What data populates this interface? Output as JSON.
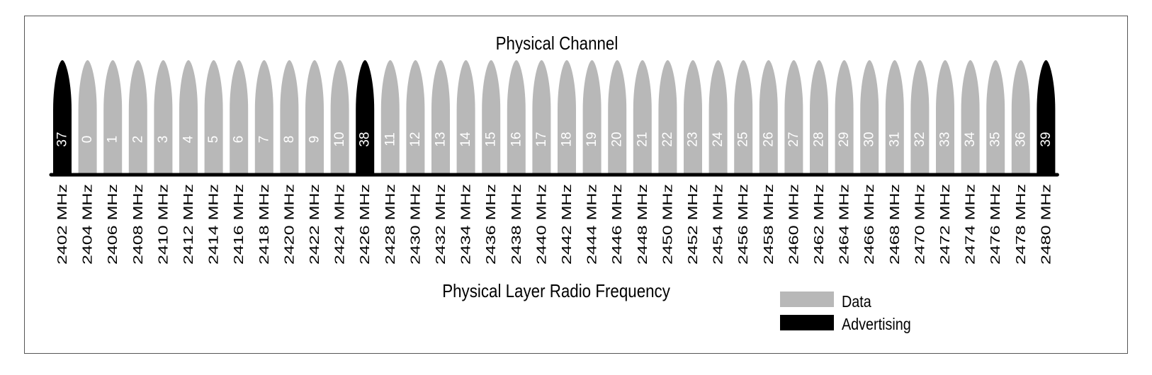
{
  "title": "Physical Channel",
  "xlabel": "Physical Layer Radio Frequency",
  "colors": {
    "data": "#b8b8b8",
    "advertising": "#000000",
    "baseline": "#000000",
    "label_on_channel": "#ffffff",
    "text": "#000000"
  },
  "legend": [
    {
      "key": "data",
      "label": "Data",
      "color": "#b8b8b8"
    },
    {
      "key": "advertising",
      "label": "Advertising",
      "color": "#000000"
    }
  ],
  "chart_data": {
    "type": "bar",
    "title": "Physical Channel",
    "xlabel": "Physical Layer Radio Frequency",
    "categories": [
      "2402 MHz",
      "2404 MHz",
      "2406 MHz",
      "2408 MHz",
      "2410 MHz",
      "2412 MHz",
      "2414 MHz",
      "2416 MHz",
      "2418 MHz",
      "2420 MHz",
      "2422 MHz",
      "2424 MHz",
      "2426 MHz",
      "2428 MHz",
      "2430 MHz",
      "2432 MHz",
      "2434 MHz",
      "2436 MHz",
      "2438 MHz",
      "2440 MHz",
      "2442 MHz",
      "2444 MHz",
      "2446 MHz",
      "2448 MHz",
      "2450 MHz",
      "2452 MHz",
      "2454 MHz",
      "2456 MHz",
      "2458 MHz",
      "2460 MHz",
      "2462 MHz",
      "2464 MHz",
      "2466 MHz",
      "2468 MHz",
      "2470 MHz",
      "2472 MHz",
      "2474 MHz",
      "2476 MHz",
      "2478 MHz",
      "2480 MHz"
    ],
    "channels": [
      "37",
      "0",
      "1",
      "2",
      "3",
      "4",
      "5",
      "6",
      "7",
      "8",
      "9",
      "10",
      "38",
      "11",
      "12",
      "13",
      "14",
      "15",
      "16",
      "17",
      "18",
      "19",
      "20",
      "21",
      "22",
      "23",
      "24",
      "25",
      "26",
      "27",
      "28",
      "29",
      "30",
      "31",
      "32",
      "33",
      "34",
      "35",
      "36",
      "39"
    ],
    "kinds": [
      "advertising",
      "data",
      "data",
      "data",
      "data",
      "data",
      "data",
      "data",
      "data",
      "data",
      "data",
      "data",
      "advertising",
      "data",
      "data",
      "data",
      "data",
      "data",
      "data",
      "data",
      "data",
      "data",
      "data",
      "data",
      "data",
      "data",
      "data",
      "data",
      "data",
      "data",
      "data",
      "data",
      "data",
      "data",
      "data",
      "data",
      "data",
      "data",
      "data",
      "advertising"
    ]
  }
}
